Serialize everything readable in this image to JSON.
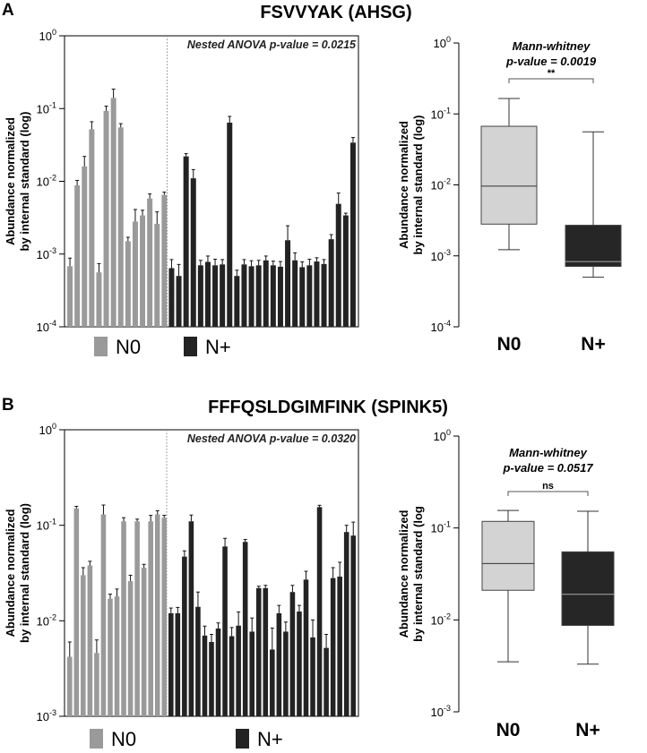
{
  "colors": {
    "n0": "#9a9a9a",
    "nplus": "#232323",
    "box_n0": "#d3d3d3",
    "box_nplus": "#262626"
  },
  "chart_data": [
    {
      "type": "bar",
      "panel_letter": "A",
      "title": "FSVVYAK (AHSG)",
      "ylabel": [
        "Abundance normalized",
        "by internal standard (log)"
      ],
      "yscale": "log",
      "ylim": [
        0.0001,
        1
      ],
      "yticks": [
        {
          "base": "10",
          "exp": "0"
        },
        {
          "base": "10",
          "exp": "-1"
        },
        {
          "base": "10",
          "exp": "-2"
        },
        {
          "base": "10",
          "exp": "-3"
        },
        {
          "base": "10",
          "exp": "-4"
        }
      ],
      "annotation": "Nested ANOVA p-value = 0.0215",
      "legend": [
        "N0",
        "N+"
      ],
      "n0_count": 14,
      "series": [
        {
          "name": "N0",
          "values": [
            0.00068,
            0.0088,
            0.016,
            0.052,
            0.00056,
            0.093,
            0.14,
            0.055,
            0.0015,
            0.0028,
            0.0034,
            0.0058,
            0.0026,
            0.0065
          ],
          "errors": [
            0.0002,
            0.0015,
            0.006,
            0.014,
            0.00018,
            0.015,
            0.045,
            0.007,
            0.0002,
            0.0013,
            0.0006,
            0.0009,
            0.0012,
            0.0006
          ]
        },
        {
          "name": "N+",
          "values": [
            0.00064,
            0.0005,
            0.022,
            0.011,
            0.0007,
            0.00078,
            0.0007,
            0.00072,
            0.064,
            0.0005,
            0.00072,
            0.00068,
            0.0007,
            0.00082,
            0.0007,
            0.00067,
            0.00155,
            0.00082,
            0.00066,
            0.0007,
            0.00079,
            0.00073,
            0.0016,
            0.0049,
            0.0034,
            0.034
          ],
          "errors": [
            0.0002,
            0.00022,
            0.002,
            0.0035,
            0.00012,
            0.00016,
            0.00015,
            0.00012,
            0.014,
            0.0001,
            0.00012,
            0.00013,
            0.00012,
            0.00012,
            0.0001,
            0.00012,
            0.0009,
            0.00022,
            0.00012,
            0.00015,
            0.0001,
            0.00011,
            0.00025,
            0.002,
            0.00025,
            0.006
          ]
        }
      ]
    },
    {
      "type": "box",
      "ylabel": [
        "Abundance normalized",
        "by internal standard (log)"
      ],
      "yscale": "log",
      "ylim": [
        0.0001,
        1
      ],
      "yticks": [
        {
          "base": "10",
          "exp": "0"
        },
        {
          "base": "10",
          "exp": "-1"
        },
        {
          "base": "10",
          "exp": "-2"
        },
        {
          "base": "10",
          "exp": "-3"
        },
        {
          "base": "10",
          "exp": "-4"
        }
      ],
      "annotation": [
        "Mann-whitney",
        "p-value = 0.0019"
      ],
      "significance": "**",
      "categories": [
        "N0",
        "N+"
      ],
      "boxes": [
        {
          "name": "N0",
          "min": 0.00122,
          "q1": 0.0028,
          "median": 0.0096,
          "q3": 0.067,
          "max": 0.165
        },
        {
          "name": "N+",
          "min": 0.0005,
          "q1": 0.00071,
          "median": 0.00083,
          "q3": 0.0027,
          "max": 0.056
        }
      ]
    },
    {
      "type": "bar",
      "panel_letter": "B",
      "title": "FFFQSLDGIMFINK (SPINK5)",
      "ylabel": [
        "Abundance normalized",
        "by internal standard (log)"
      ],
      "yscale": "log",
      "ylim": [
        0.001,
        1
      ],
      "yticks": [
        {
          "base": "10",
          "exp": "0"
        },
        {
          "base": "10",
          "exp": "-1"
        },
        {
          "base": "10",
          "exp": "-2"
        },
        {
          "base": "10",
          "exp": "-3"
        }
      ],
      "annotation": "Nested ANOVA p-value = 0.0320",
      "legend": [
        "N0",
        "N+"
      ],
      "n0_count": 15,
      "series": [
        {
          "name": "N0",
          "values": [
            0.0042,
            0.15,
            0.03,
            0.038,
            0.0046,
            0.13,
            0.017,
            0.018,
            0.11,
            0.026,
            0.11,
            0.036,
            0.11,
            0.13,
            0.12
          ],
          "errors": [
            0.0018,
            0.008,
            0.006,
            0.004,
            0.0017,
            0.033,
            0.002,
            0.0035,
            0.01,
            0.004,
            0.006,
            0.003,
            0.017,
            0.012,
            0.007
          ]
        },
        {
          "name": "N+",
          "values": [
            0.012,
            0.012,
            0.047,
            0.11,
            0.014,
            0.007,
            0.006,
            0.0083,
            0.06,
            0.0069,
            0.0089,
            0.067,
            0.0077,
            0.022,
            0.022,
            0.005,
            0.012,
            0.0077,
            0.02,
            0.0125,
            0.027,
            0.0067,
            0.155,
            0.0052,
            0.028,
            0.029,
            0.085,
            0.078
          ],
          "errors": [
            0.0016,
            0.0018,
            0.007,
            0.018,
            0.006,
            0.0018,
            0.0012,
            0.0012,
            0.013,
            0.0016,
            0.0035,
            0.004,
            0.003,
            0.001,
            0.0015,
            0.0034,
            0.0025,
            0.002,
            0.0035,
            0.002,
            0.006,
            0.0035,
            0.007,
            0.002,
            0.008,
            0.012,
            0.015,
            0.03
          ]
        }
      ]
    },
    {
      "type": "box",
      "ylabel": [
        "Abundance normalized",
        "by internal standard (log"
      ],
      "yscale": "log",
      "ylim": [
        0.001,
        1
      ],
      "yticks": [
        {
          "base": "10",
          "exp": "0"
        },
        {
          "base": "10",
          "exp": "-1"
        },
        {
          "base": "10",
          "exp": "-2"
        },
        {
          "base": "10",
          "exp": "-3"
        }
      ],
      "annotation": [
        "Mann-whitney",
        "p-value = 0.0517"
      ],
      "significance": "ns",
      "categories": [
        "N0",
        "N+"
      ],
      "boxes": [
        {
          "name": "N0",
          "min": 0.0035,
          "q1": 0.021,
          "median": 0.041,
          "q3": 0.118,
          "max": 0.155
        },
        {
          "name": "N+",
          "min": 0.0033,
          "q1": 0.0087,
          "median": 0.019,
          "q3": 0.055,
          "max": 0.152
        }
      ]
    }
  ]
}
